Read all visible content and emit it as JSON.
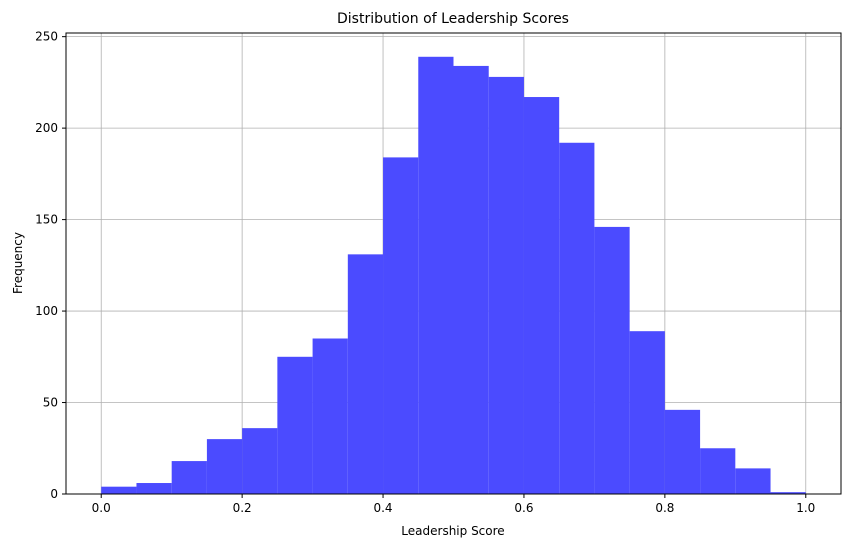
{
  "chart_data": {
    "type": "bar",
    "title": "Distribution of Leadership Scores",
    "xlabel": "Leadership Score",
    "ylabel": "Frequency",
    "xlim": [
      -0.05,
      1.05
    ],
    "ylim": [
      0,
      252
    ],
    "xticks": [
      "0.0",
      "0.2",
      "0.4",
      "0.6",
      "0.8",
      "1.0"
    ],
    "xtick_values": [
      0,
      0.2,
      0.4,
      0.6,
      0.8,
      1.0
    ],
    "yticks": [
      "0",
      "50",
      "100",
      "150",
      "200",
      "250"
    ],
    "ytick_values": [
      0,
      50,
      100,
      150,
      200,
      250
    ],
    "grid": true,
    "bar_color": "#4b4bff",
    "bin_edges": [
      0,
      0.05,
      0.1,
      0.15,
      0.2,
      0.25,
      0.3,
      0.35,
      0.4,
      0.45,
      0.5,
      0.55,
      0.6,
      0.65,
      0.7,
      0.75,
      0.8,
      0.85,
      0.9,
      0.95,
      1.0
    ],
    "values": [
      4,
      6,
      18,
      30,
      36,
      75,
      85,
      131,
      184,
      239,
      234,
      228,
      217,
      192,
      146,
      89,
      46,
      25,
      14,
      1
    ]
  }
}
